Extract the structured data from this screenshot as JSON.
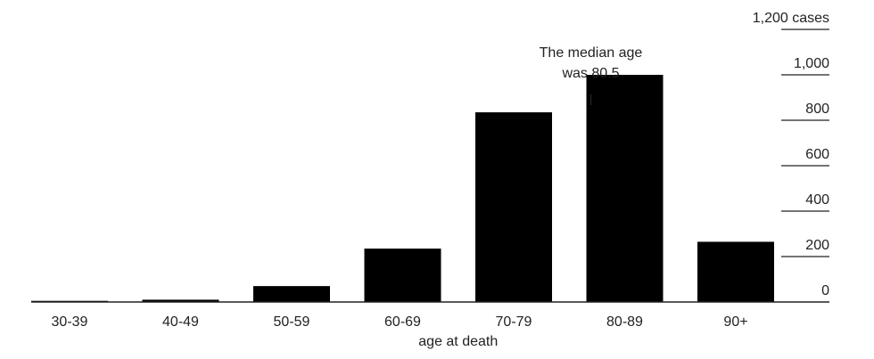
{
  "chart_data": {
    "type": "bar",
    "categories": [
      "30-39",
      "40-49",
      "50-59",
      "60-69",
      "70-79",
      "80-89",
      "90+"
    ],
    "values": [
      5,
      10,
      70,
      235,
      835,
      1000,
      265
    ],
    "xlabel": "age at death",
    "y_ticks": [
      "0",
      "200",
      "400",
      "600",
      "800",
      "1,000",
      "1,200 cases"
    ],
    "ylim": [
      0,
      1200
    ],
    "grid": false,
    "bar_color": "#000000",
    "annotation": {
      "line1": "The median age",
      "line2": "was 80.5",
      "value": 80.5
    }
  }
}
